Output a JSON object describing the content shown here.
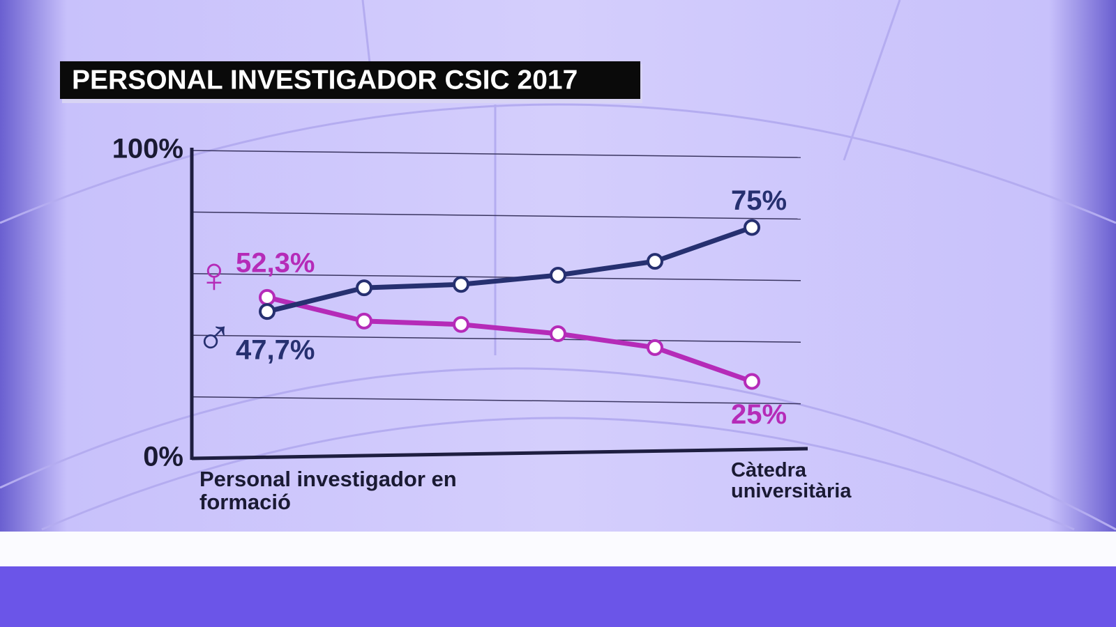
{
  "chart_data": {
    "type": "line",
    "title": "PERSONAL INVESTIGADOR CSIC 2017",
    "categories": [
      "Personal investigador en formació",
      null,
      null,
      null,
      null,
      "Càtedra universitària"
    ],
    "series": [
      {
        "name": "♀",
        "color": "#b52bb8",
        "values": [
          52.3,
          44.6,
          43.5,
          40.5,
          36,
          25
        ],
        "value_labels": [
          "52,3%",
          null,
          null,
          null,
          null,
          "25%"
        ]
      },
      {
        "name": "♂",
        "color": "#263070",
        "values": [
          47.7,
          55.4,
          56.5,
          59.5,
          64,
          75
        ],
        "value_labels": [
          "47,7%",
          null,
          null,
          null,
          null,
          "75%"
        ]
      }
    ],
    "ylim": [
      0,
      100
    ],
    "yticks": [
      {
        "value": 0,
        "label": "0%"
      },
      {
        "value": 100,
        "label": "100%"
      }
    ],
    "ygrid": [
      20,
      40,
      60,
      80,
      100
    ],
    "grid": true
  }
}
